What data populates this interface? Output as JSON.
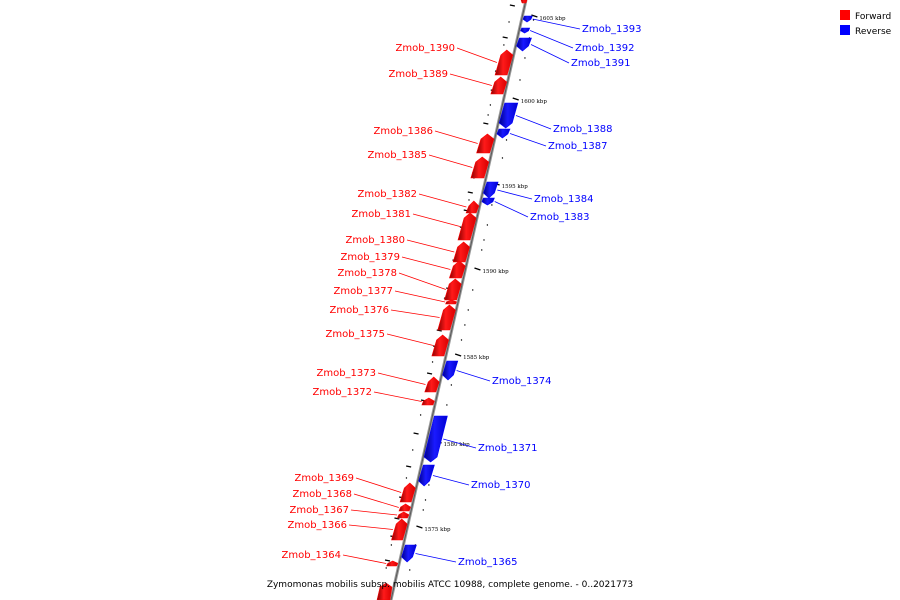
{
  "caption": "Zymomonas mobilis subsp. mobilis ATCC 10988, complete genome. - 0..2021773",
  "legend": {
    "forward_label": "Forward",
    "reverse_label": "Reverse",
    "forward_color": "#ff0000",
    "reverse_color": "#0000ff"
  },
  "tick_labels": [
    "1605 kbp",
    "1600 kbp",
    "1595 kbp",
    "1590 kbp",
    "1585 kbp",
    "1580 kbp",
    "1575 kbp"
  ],
  "genes": [
    {
      "name": "Zmob_1393",
      "strand": "reverse"
    },
    {
      "name": "Zmob_1392",
      "strand": "reverse"
    },
    {
      "name": "Zmob_1391",
      "strand": "reverse"
    },
    {
      "name": "Zmob_1390",
      "strand": "forward"
    },
    {
      "name": "Zmob_1389",
      "strand": "forward"
    },
    {
      "name": "Zmob_1388",
      "strand": "reverse"
    },
    {
      "name": "Zmob_1387",
      "strand": "reverse"
    },
    {
      "name": "Zmob_1386",
      "strand": "forward"
    },
    {
      "name": "Zmob_1385",
      "strand": "forward"
    },
    {
      "name": "Zmob_1384",
      "strand": "reverse"
    },
    {
      "name": "Zmob_1383",
      "strand": "reverse"
    },
    {
      "name": "Zmob_1382",
      "strand": "forward"
    },
    {
      "name": "Zmob_1381",
      "strand": "forward"
    },
    {
      "name": "Zmob_1380",
      "strand": "forward"
    },
    {
      "name": "Zmob_1379",
      "strand": "forward"
    },
    {
      "name": "Zmob_1378",
      "strand": "forward"
    },
    {
      "name": "Zmob_1377",
      "strand": "forward"
    },
    {
      "name": "Zmob_1376",
      "strand": "forward"
    },
    {
      "name": "Zmob_1375",
      "strand": "forward"
    },
    {
      "name": "Zmob_1374",
      "strand": "reverse"
    },
    {
      "name": "Zmob_1373",
      "strand": "forward"
    },
    {
      "name": "Zmob_1372",
      "strand": "forward"
    },
    {
      "name": "Zmob_1371",
      "strand": "reverse"
    },
    {
      "name": "Zmob_1370",
      "strand": "reverse"
    },
    {
      "name": "Zmob_1369",
      "strand": "forward"
    },
    {
      "name": "Zmob_1368",
      "strand": "forward"
    },
    {
      "name": "Zmob_1367",
      "strand": "forward"
    },
    {
      "name": "Zmob_1366",
      "strand": "forward"
    },
    {
      "name": "Zmob_1365",
      "strand": "reverse"
    },
    {
      "name": "Zmob_1364",
      "strand": "forward"
    }
  ]
}
